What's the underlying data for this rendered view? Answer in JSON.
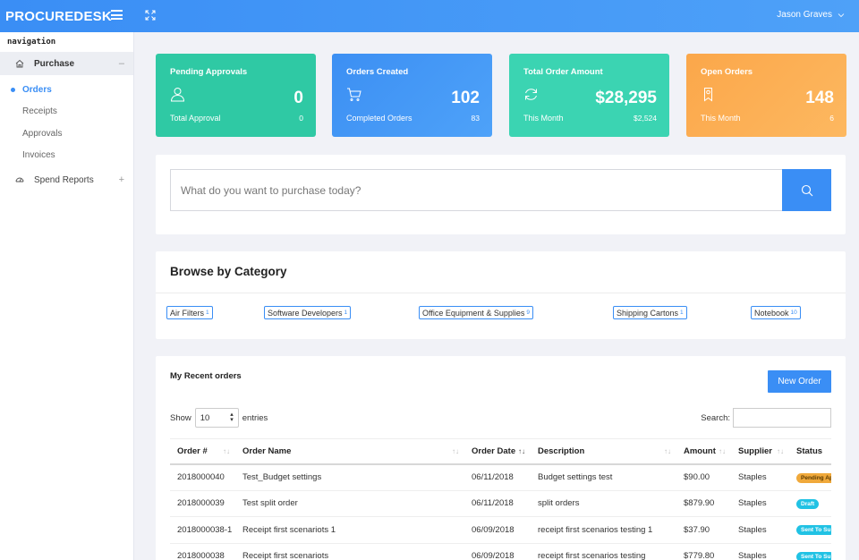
{
  "app": {
    "brand": "PROCUREDESK",
    "user_name": "Jason Graves"
  },
  "sidebar": {
    "title": "navigation",
    "groups": [
      {
        "label": "Purchase",
        "sign": "–",
        "icon": "home-icon"
      },
      {
        "label": "Spend Reports",
        "sign": "+",
        "icon": "chart-icon"
      }
    ],
    "items": [
      {
        "label": "Orders",
        "active": true
      },
      {
        "label": "Receipts",
        "active": false
      },
      {
        "label": "Approvals",
        "active": false
      },
      {
        "label": "Invoices",
        "active": false
      }
    ]
  },
  "cards": [
    {
      "title": "Pending Approvals",
      "value": "0",
      "sub_label": "Total Approval",
      "sub_value": "0",
      "icon": "user-icon",
      "color": "#2fc9a4"
    },
    {
      "title": "Orders Created",
      "value": "102",
      "sub_label": "Completed Orders",
      "sub_value": "83",
      "icon": "cart-icon",
      "color": "#3c8ff3"
    },
    {
      "title": "Total Order Amount",
      "value": "$28,295",
      "sub_label": "This Month",
      "sub_value": "$2,524",
      "icon": "refresh-icon",
      "color": "#3bd4b2"
    },
    {
      "title": "Open Orders",
      "value": "148",
      "sub_label": "This Month",
      "sub_value": "6",
      "icon": "bookmark-icon",
      "color": "#fba74a"
    }
  ],
  "search": {
    "placeholder": "What do you want to purchase today?"
  },
  "browse": {
    "title": "Browse by Category",
    "categories": [
      {
        "label": "Air Filters",
        "count": "1"
      },
      {
        "label": "Software Developers",
        "count": "1"
      },
      {
        "label": "Office Equipment & Supplies",
        "count": "9"
      },
      {
        "label": "Shipping Cartons",
        "count": "1"
      },
      {
        "label": "Notebook",
        "count": "10"
      }
    ]
  },
  "orders": {
    "title": "My Recent orders",
    "new_order_label": "New Order",
    "show_label": "Show",
    "entries_value": "10",
    "entries_label": "entries",
    "search_label": "Search:",
    "columns": [
      "Order #",
      "Order Name",
      "Order Date",
      "Description",
      "Amount",
      "Supplier",
      "Status"
    ],
    "rows": [
      {
        "order_no": "2018000040",
        "name": "Test_Budget settings",
        "date": "06/11/2018",
        "description": "Budget settings test",
        "amount": "$90.00",
        "supplier": "Staples",
        "status": "Pending Ap",
        "status_color": "#f0a93b"
      },
      {
        "order_no": "2018000039",
        "name": "Test split order",
        "date": "06/11/2018",
        "description": "split orders",
        "amount": "$879.90",
        "supplier": "Staples",
        "status": "Draft",
        "status_color": "#21c2e4"
      },
      {
        "order_no": "2018000038-1",
        "name": "Receipt first scenariots 1",
        "date": "06/09/2018",
        "description": "receipt first scenarios testing 1",
        "amount": "$37.90",
        "supplier": "Staples",
        "status": "Sent To Su",
        "status_color": "#21c2e4"
      },
      {
        "order_no": "2018000038",
        "name": "Receipt first scenariots",
        "date": "06/09/2018",
        "description": "receipt first scenarios testing",
        "amount": "$779.80",
        "supplier": "Staples",
        "status": "Sent To Su",
        "status_color": "#21c2e4"
      }
    ]
  }
}
